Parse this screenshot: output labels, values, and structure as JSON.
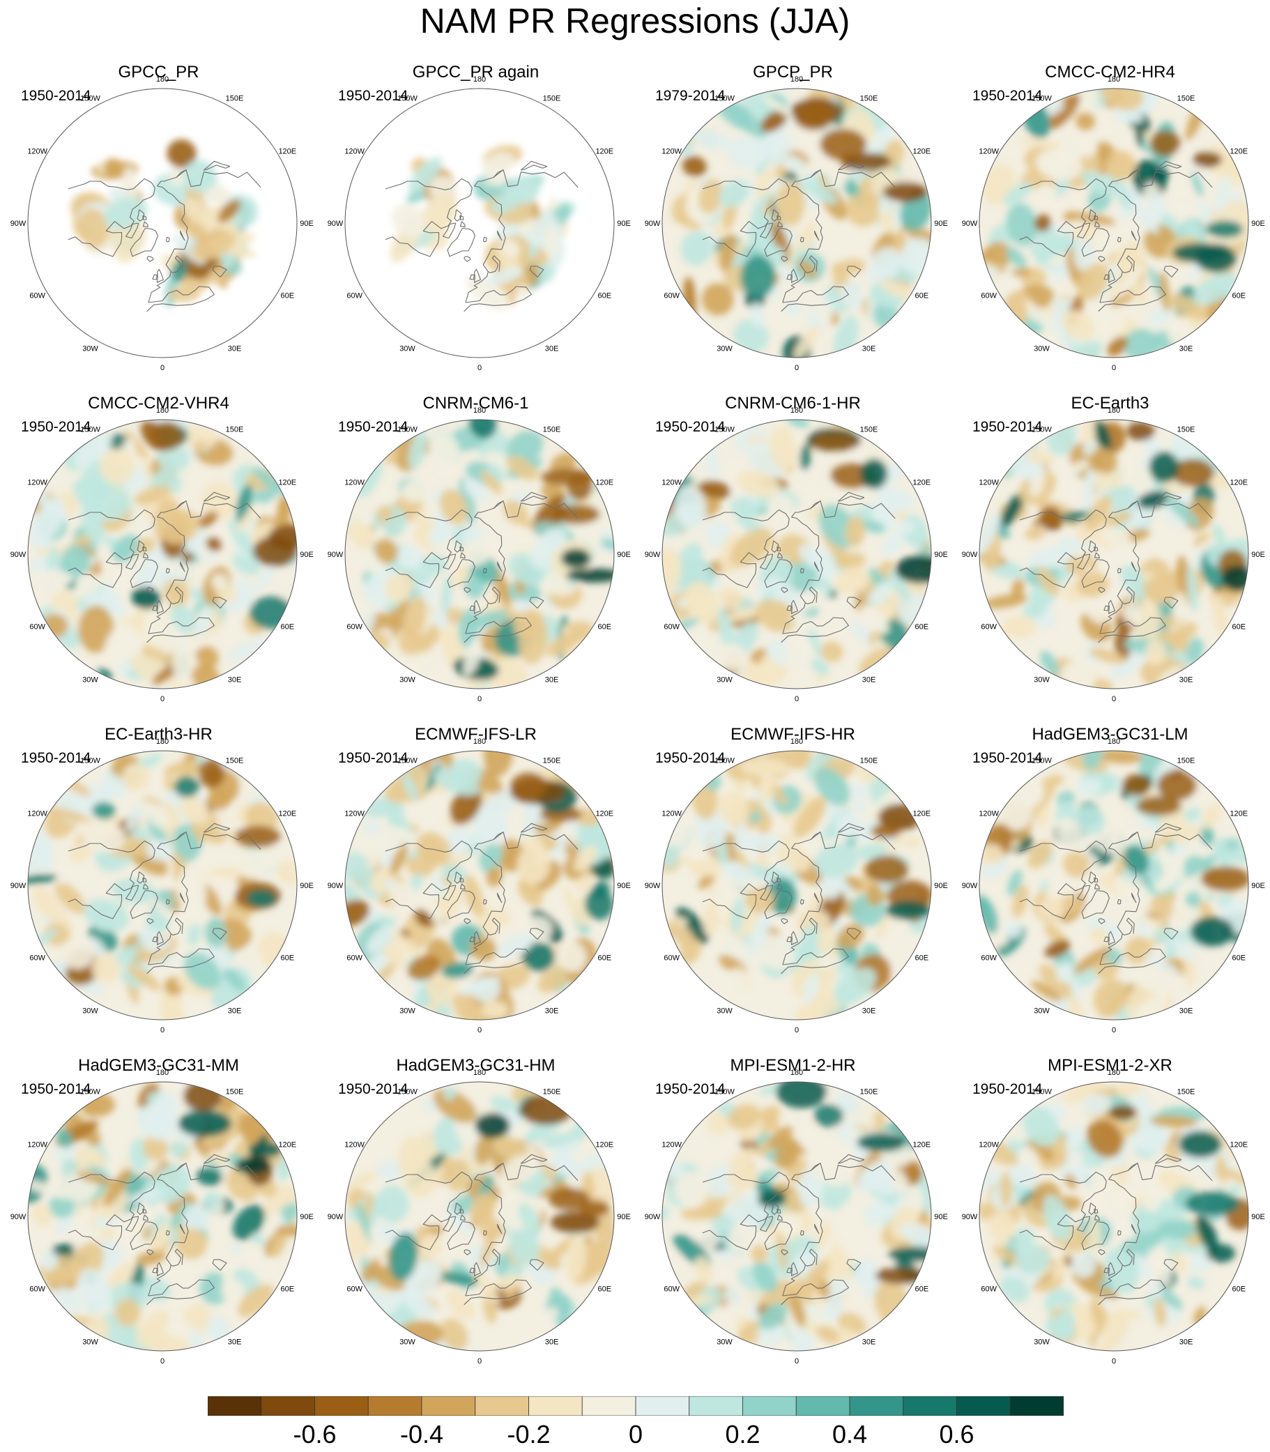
{
  "title": "NAM PR Regressions (JJA)",
  "longitude_labels": [
    "180",
    "150E",
    "120E",
    "90E",
    "60E",
    "30E",
    "0",
    "30W",
    "60W",
    "90W",
    "120W",
    "150W"
  ],
  "panels": [
    {
      "name": "GPCC_PR",
      "period": "1950-2014",
      "land_only": true,
      "row": 0,
      "col": 0
    },
    {
      "name": "GPCC_PR again",
      "period": "1950-2014",
      "land_only": true,
      "row": 0,
      "col": 1
    },
    {
      "name": "GPCP_PR",
      "period": "1979-2014",
      "land_only": false,
      "row": 0,
      "col": 2
    },
    {
      "name": "CMCC-CM2-HR4",
      "period": "1950-2014",
      "land_only": false,
      "row": 0,
      "col": 3
    },
    {
      "name": "CMCC-CM2-VHR4",
      "period": "1950-2014",
      "land_only": false,
      "row": 1,
      "col": 0
    },
    {
      "name": "CNRM-CM6-1",
      "period": "1950-2014",
      "land_only": false,
      "row": 1,
      "col": 1
    },
    {
      "name": "CNRM-CM6-1-HR",
      "period": "1950-2014",
      "land_only": false,
      "row": 1,
      "col": 2
    },
    {
      "name": "EC-Earth3",
      "period": "1950-2014",
      "land_only": false,
      "row": 1,
      "col": 3
    },
    {
      "name": "EC-Earth3-HR",
      "period": "1950-2014",
      "land_only": false,
      "row": 2,
      "col": 0
    },
    {
      "name": "ECMWF-IFS-LR",
      "period": "1950-2014",
      "land_only": false,
      "row": 2,
      "col": 1
    },
    {
      "name": "ECMWF-IFS-HR",
      "period": "1950-2014",
      "land_only": false,
      "row": 2,
      "col": 2
    },
    {
      "name": "HadGEM3-GC31-LM",
      "period": "1950-2014",
      "land_only": false,
      "row": 2,
      "col": 3
    },
    {
      "name": "HadGEM3-GC31-MM",
      "period": "1950-2014",
      "land_only": false,
      "row": 3,
      "col": 0
    },
    {
      "name": "HadGEM3-GC31-HM",
      "period": "1950-2014",
      "land_only": false,
      "row": 3,
      "col": 1
    },
    {
      "name": "MPI-ESM1-2-HR",
      "period": "1950-2014",
      "land_only": false,
      "row": 3,
      "col": 2
    },
    {
      "name": "MPI-ESM1-2-XR",
      "period": "1950-2014",
      "land_only": false,
      "row": 3,
      "col": 3
    }
  ],
  "colorbar": {
    "colors": [
      "#5a3208",
      "#7e4a0e",
      "#9a5f15",
      "#b57b2e",
      "#d1a55b",
      "#e7c98f",
      "#f4e6c3",
      "#f3efe1",
      "#e1f0ee",
      "#bfe7e0",
      "#92d3c9",
      "#63b9ad",
      "#34968a",
      "#17786c",
      "#075b4e",
      "#003c30"
    ],
    "tick_labels": [
      "-0.6",
      "-0.4",
      "-0.2",
      "0",
      "0.2",
      "0.4",
      "0.6"
    ],
    "tick_values": [
      -0.6,
      -0.4,
      -0.2,
      0,
      0.2,
      0.4,
      0.6
    ],
    "min": -0.8,
    "max": 0.8
  }
}
